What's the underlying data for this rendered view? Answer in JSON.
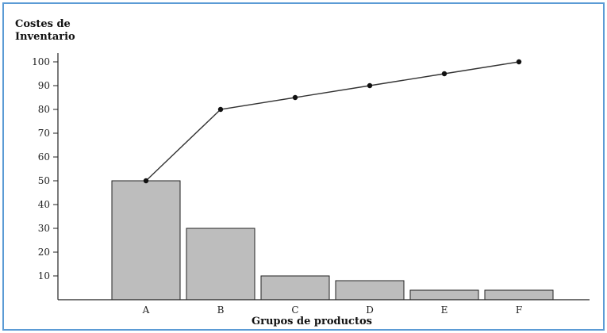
{
  "chart_data": {
    "type": "bar",
    "ylabel_lines": [
      "Costes de",
      "Inventario"
    ],
    "xlabel": "Grupos de productos",
    "categories": [
      "A",
      "B",
      "C",
      "D",
      "E",
      "F"
    ],
    "series": [
      {
        "type": "bar",
        "values": [
          50,
          30,
          10,
          8,
          4,
          4
        ]
      },
      {
        "type": "line",
        "values": [
          50,
          80,
          85,
          90,
          95,
          100
        ]
      }
    ],
    "ylim": [
      0,
      100
    ],
    "yticks": [
      10,
      20,
      30,
      40,
      50,
      60,
      70,
      80,
      90,
      100
    ],
    "grid": false,
    "colors": {
      "bar": "#bdbdbd",
      "line": "#333333",
      "frame": "#5b9bd5"
    }
  }
}
